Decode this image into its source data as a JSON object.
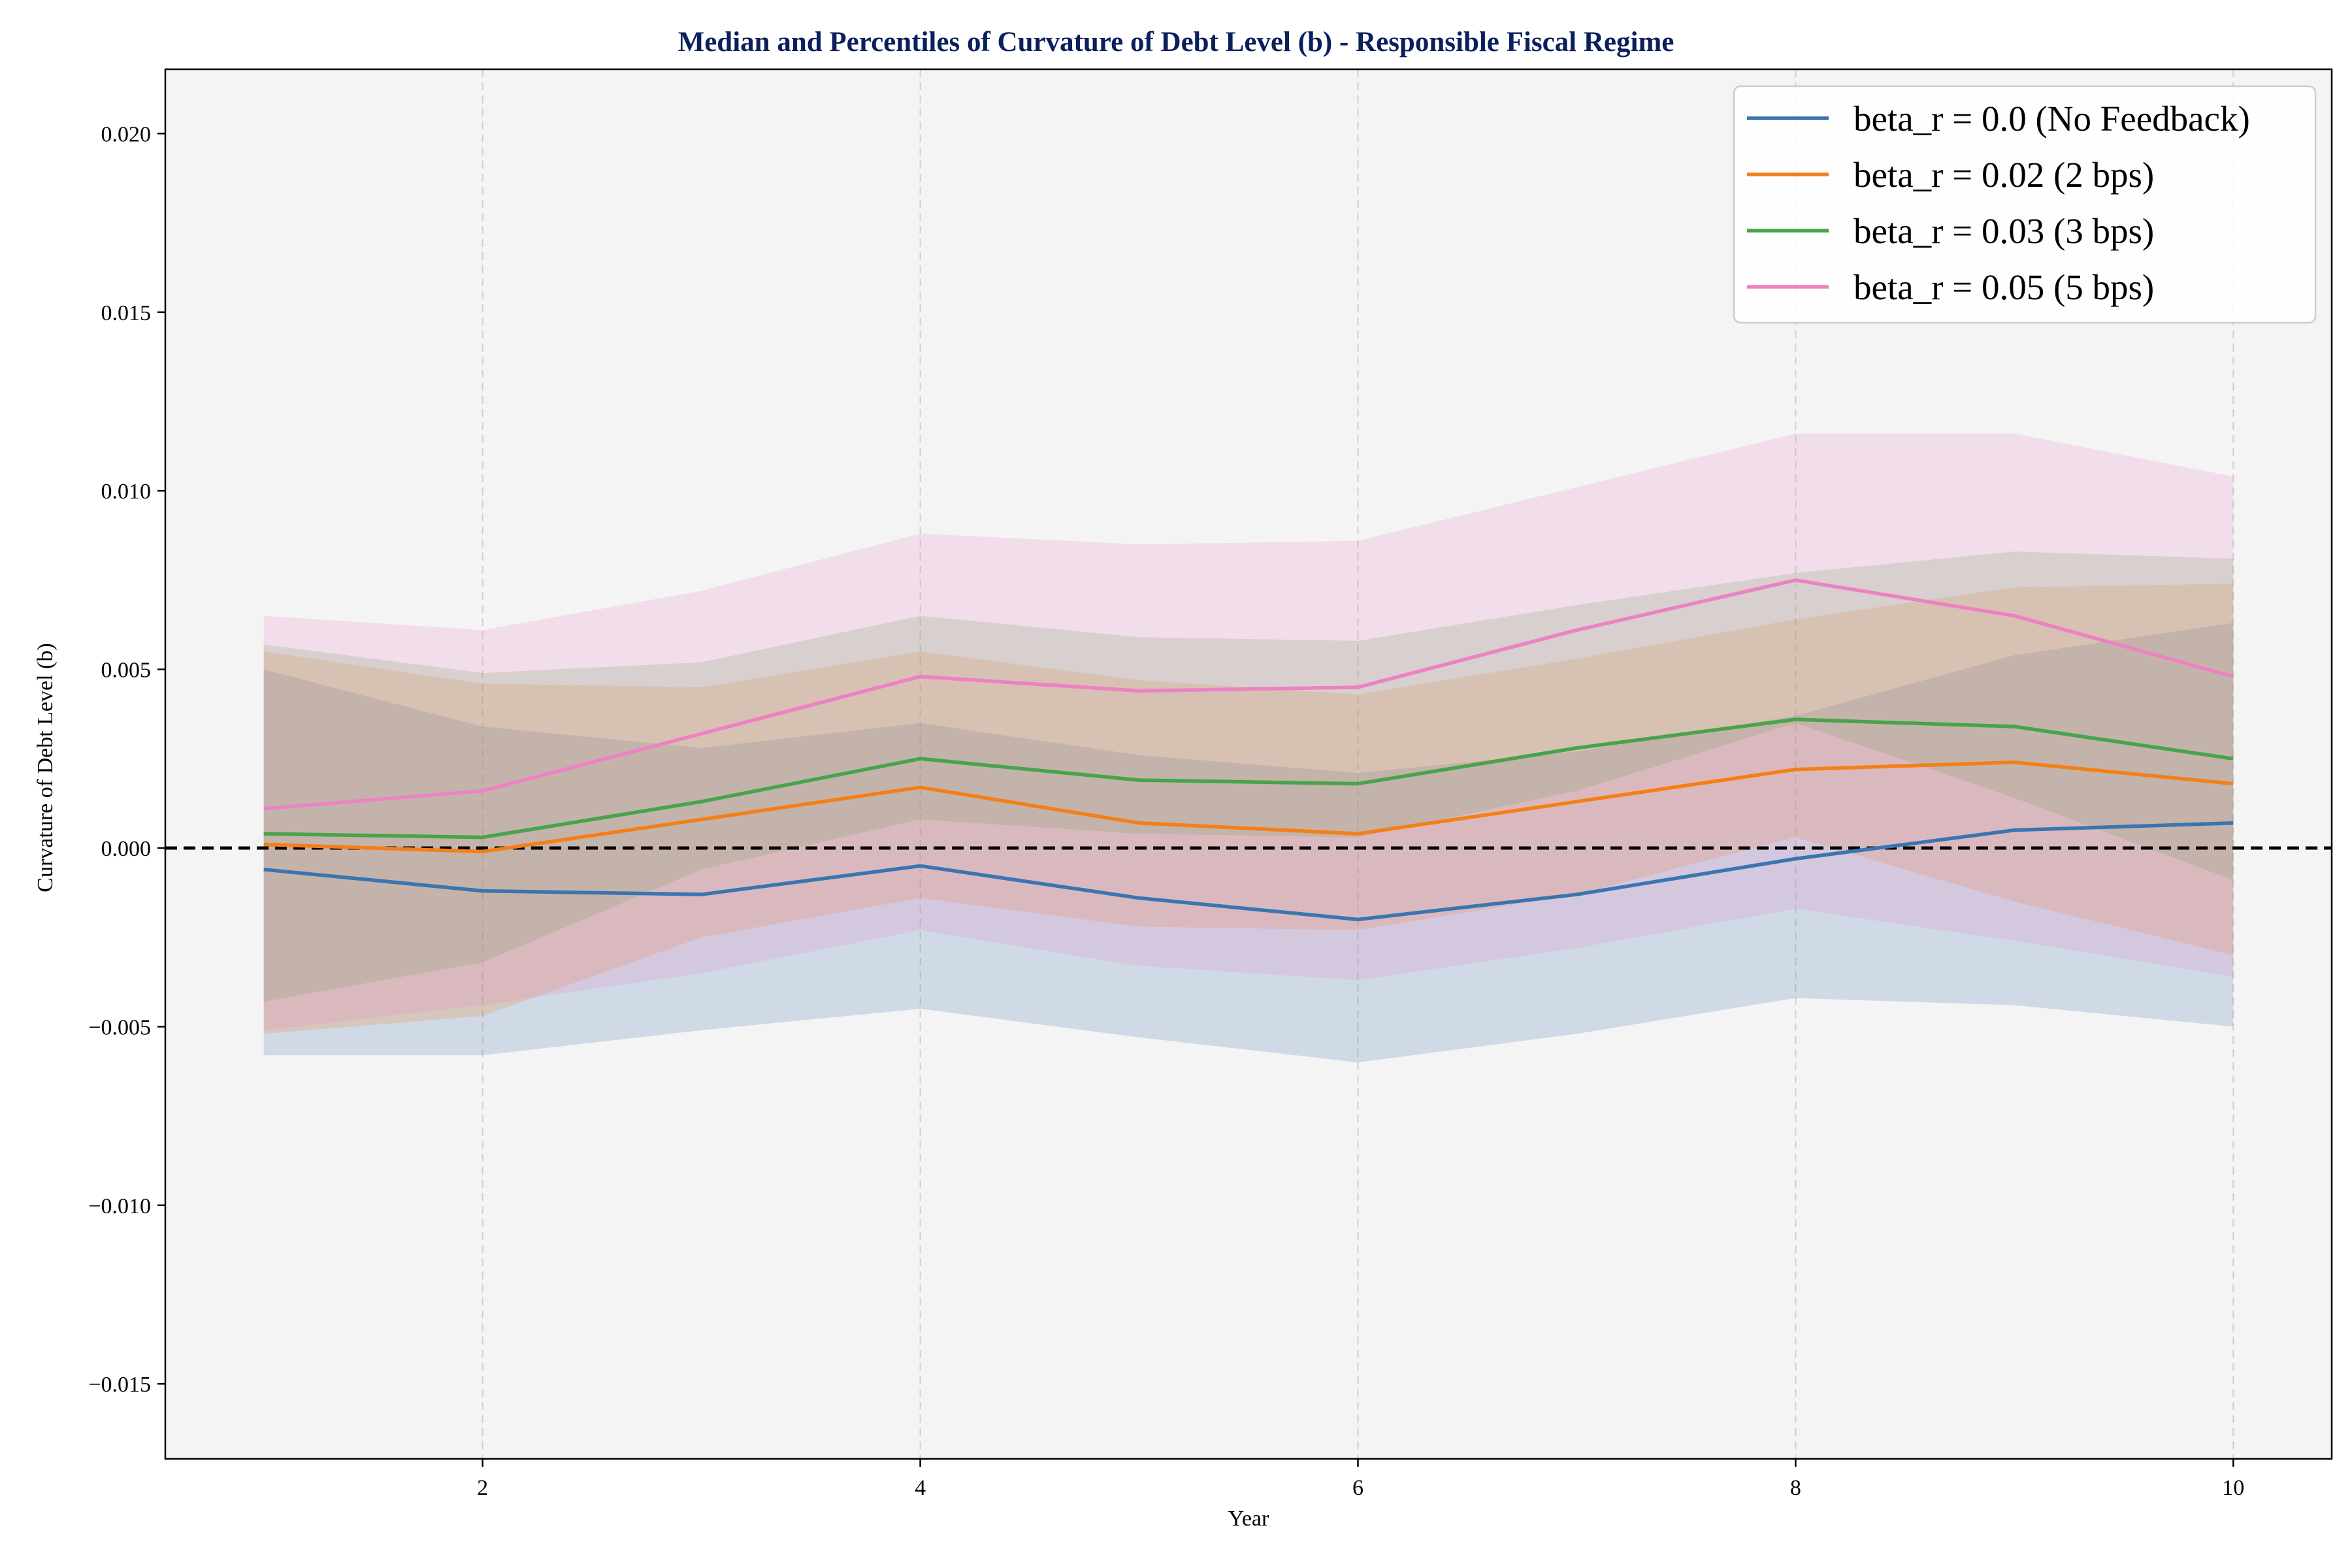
{
  "chart_data": {
    "type": "line",
    "title": "Median and Percentiles of Curvature of Debt Level (b) - Responsible Fiscal Regime",
    "xlabel": "Year",
    "ylabel": "Curvature of Debt Level (b)",
    "xlim": [
      0.55,
      10.45
    ],
    "ylim": [
      -0.0171,
      0.0218
    ],
    "x_ticks": [
      2,
      4,
      6,
      8,
      10
    ],
    "x_tick_labels": [
      "2",
      "4",
      "6",
      "8",
      "10"
    ],
    "y_ticks": [
      -0.015,
      -0.01,
      -0.005,
      0.0,
      0.005,
      0.01,
      0.015,
      0.02
    ],
    "y_tick_labels": [
      "−0.015",
      "−0.010",
      "−0.005",
      "0.000",
      "0.005",
      "0.010",
      "0.015",
      "0.020"
    ],
    "grid": "x only, dashed",
    "reference_line": 0.0,
    "legend_position": "top-right",
    "background": "#f4f4f4",
    "x": [
      1,
      2,
      3,
      4,
      5,
      6,
      7,
      8,
      9,
      10
    ],
    "series": [
      {
        "name": "beta_r = 0.0 (No Feedback)",
        "color": "#3a75b0",
        "median": [
          -0.0006,
          -0.0012,
          -0.0013,
          -0.0005,
          -0.0014,
          -0.002,
          -0.0013,
          -0.0003,
          0.0005,
          0.0007
        ],
        "lower": [
          -0.0058,
          -0.0058,
          -0.0051,
          -0.0045,
          -0.0053,
          -0.006,
          -0.0052,
          -0.0042,
          -0.0044,
          -0.005
        ],
        "upper": [
          0.005,
          0.0034,
          0.0028,
          0.0035,
          0.0026,
          0.0021,
          0.0027,
          0.0037,
          0.0054,
          0.0063
        ]
      },
      {
        "name": "beta_r = 0.02 (2 bps)",
        "color": "#f47f17",
        "median": [
          0.0001,
          -0.0001,
          0.0008,
          0.0017,
          0.0007,
          0.0004,
          0.0013,
          0.0022,
          0.0024,
          0.0018
        ],
        "lower": [
          -0.0052,
          -0.0047,
          -0.0025,
          -0.0014,
          -0.0022,
          -0.0023,
          -0.0013,
          0.0003,
          -0.0015,
          -0.003
        ],
        "upper": [
          0.0055,
          0.0046,
          0.0045,
          0.0055,
          0.0047,
          0.0043,
          0.0053,
          0.0064,
          0.0073,
          0.0074
        ]
      },
      {
        "name": "beta_r = 0.03 (3 bps)",
        "color": "#4aa34a",
        "median": [
          0.0004,
          0.0003,
          0.0013,
          0.0025,
          0.0019,
          0.0018,
          0.0028,
          0.0036,
          0.0034,
          0.0025
        ],
        "lower": [
          -0.0043,
          -0.0032,
          -0.0006,
          0.0008,
          0.0004,
          0.0003,
          0.0016,
          0.0035,
          0.0014,
          -0.0009
        ],
        "upper": [
          0.0057,
          0.0049,
          0.0052,
          0.0065,
          0.0059,
          0.0058,
          0.0068,
          0.0077,
          0.0083,
          0.0081
        ]
      },
      {
        "name": "beta_r = 0.05 (5 bps)",
        "color": "#ed82c3",
        "median": [
          0.0011,
          0.0016,
          0.0032,
          0.0048,
          0.0044,
          0.0045,
          0.0061,
          0.0075,
          0.0065,
          0.0048
        ],
        "lower": [
          -0.0051,
          -0.0044,
          -0.0035,
          -0.0023,
          -0.0033,
          -0.0037,
          -0.0028,
          -0.0017,
          -0.0026,
          -0.0036
        ],
        "upper": [
          0.0065,
          0.0061,
          0.0072,
          0.0088,
          0.0085,
          0.0086,
          0.0101,
          0.0116,
          0.0116,
          0.0104
        ]
      }
    ]
  }
}
